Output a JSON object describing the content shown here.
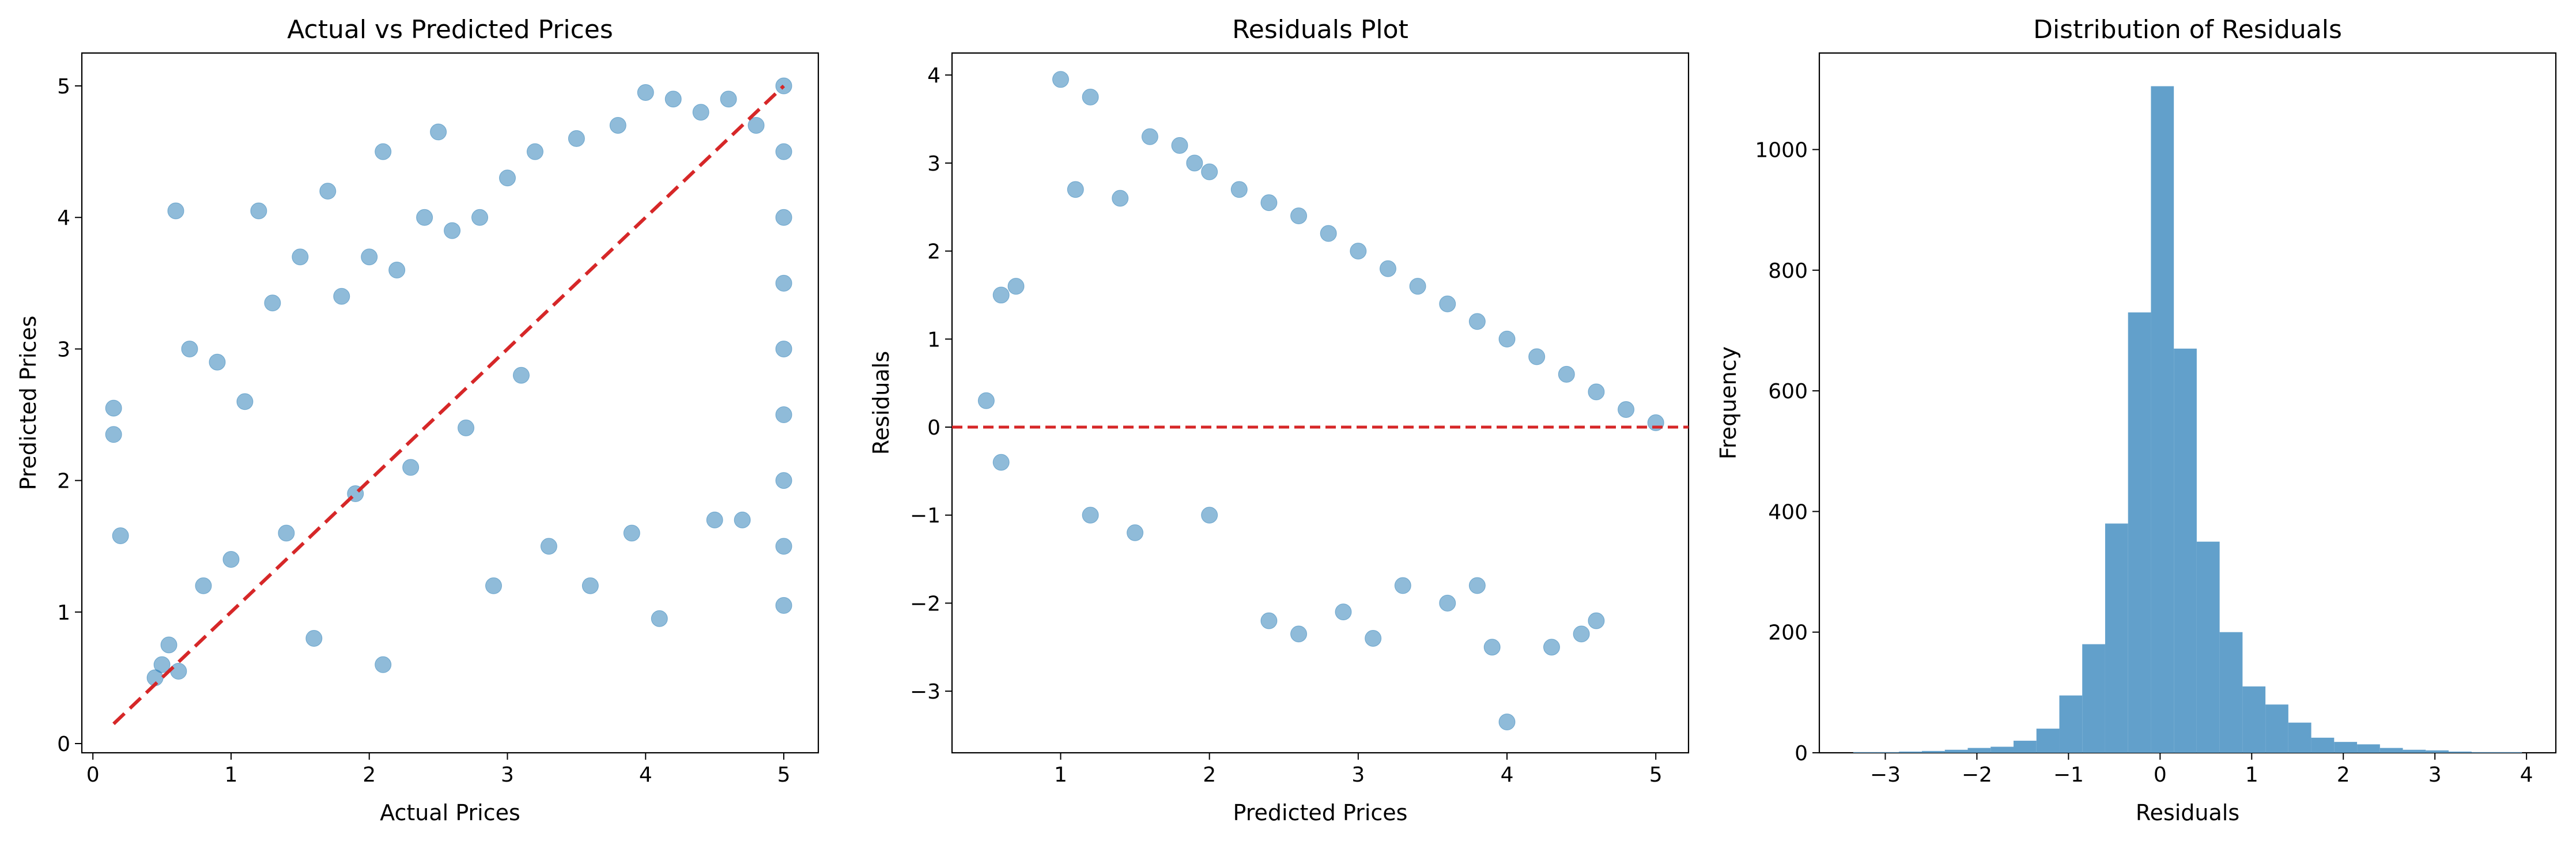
{
  "figure": {
    "charts": [
      {
        "title": "Actual vs Predicted Prices",
        "xlabel": "Actual Prices",
        "ylabel": "Predicted Prices"
      },
      {
        "title": "Residuals Plot",
        "xlabel": "Predicted Prices",
        "ylabel": "Residuals"
      },
      {
        "title": "Distribution of Residuals",
        "xlabel": "Residuals",
        "ylabel": "Frequency"
      }
    ]
  },
  "colors": {
    "points": "#1f77b4",
    "reference_line": "#d62728",
    "hist_bars": "#62a0cb"
  },
  "chart_data": [
    {
      "type": "scatter",
      "title": "Actual vs Predicted Prices",
      "xlabel": "Actual Prices",
      "ylabel": "Predicted Prices",
      "xlim": [
        -0.08,
        5.25
      ],
      "ylim": [
        -0.07,
        5.25
      ],
      "xticks": [
        0,
        1,
        2,
        3,
        4,
        5
      ],
      "yticks": [
        0,
        1,
        2,
        3,
        4,
        5
      ],
      "point_alpha": 0.5,
      "points_note": "approx. 4000 test samples; representative estimated subset",
      "x": [
        0.15,
        0.15,
        0.2,
        0.6,
        1.2,
        2.5,
        2.1,
        1.7,
        0.7,
        0.9,
        1.1,
        1.3,
        1.5,
        1.8,
        2.0,
        2.2,
        2.4,
        2.6,
        2.8,
        3.0,
        3.2,
        3.5,
        3.8,
        4.0,
        4.2,
        4.4,
        4.6,
        4.8,
        5.0,
        5.0,
        5.0,
        5.0,
        5.0,
        5.0,
        5.0,
        5.0,
        5.0,
        0.45,
        0.5,
        0.55,
        0.62,
        0.8,
        1.0,
        1.4,
        1.9,
        2.3,
        2.7,
        3.3,
        3.6,
        4.1,
        4.5,
        3.1,
        2.9,
        1.6,
        2.1,
        3.9,
        4.7
      ],
      "y": [
        2.35,
        2.55,
        1.58,
        4.05,
        4.05,
        4.65,
        4.5,
        4.2,
        3.0,
        2.9,
        2.6,
        3.35,
        3.7,
        3.4,
        3.7,
        3.6,
        4.0,
        3.9,
        4.0,
        4.3,
        4.5,
        4.6,
        4.7,
        4.95,
        4.9,
        4.8,
        4.9,
        4.7,
        5.0,
        4.5,
        4.0,
        3.5,
        3.0,
        2.5,
        2.0,
        1.5,
        1.05,
        0.5,
        0.6,
        0.75,
        0.55,
        1.2,
        1.4,
        1.6,
        1.9,
        2.1,
        2.4,
        1.5,
        1.2,
        0.95,
        1.7,
        2.8,
        1.2,
        0.8,
        0.6,
        1.6,
        1.7
      ]
    },
    {
      "type": "scatter",
      "title": "Residuals Plot",
      "xlabel": "Predicted Prices",
      "ylabel": "Residuals",
      "xlim": [
        0.27,
        5.22
      ],
      "ylim": [
        -3.7,
        4.25
      ],
      "xticks": [
        1,
        2,
        3,
        4,
        5
      ],
      "yticks": [
        -3,
        -2,
        -1,
        0,
        1,
        2,
        3,
        4
      ],
      "reference_y": 0,
      "point_alpha": 0.5,
      "points_note": "approx. 4000 residuals; representative estimated subset",
      "x": [
        1.0,
        1.2,
        0.6,
        0.7,
        1.1,
        1.4,
        1.6,
        1.8,
        1.9,
        2.0,
        2.2,
        2.4,
        2.6,
        2.8,
        3.0,
        3.2,
        3.4,
        3.6,
        3.8,
        4.0,
        4.2,
        4.4,
        4.6,
        4.8,
        5.0,
        2.4,
        2.6,
        2.9,
        3.1,
        3.3,
        3.6,
        3.8,
        3.9,
        4.0,
        4.3,
        4.5,
        4.6,
        1.2,
        1.5,
        2.0,
        0.5,
        0.6
      ],
      "y": [
        3.95,
        3.75,
        1.5,
        1.6,
        2.7,
        2.6,
        3.3,
        3.2,
        3.0,
        2.9,
        2.7,
        2.55,
        2.4,
        2.2,
        2.0,
        1.8,
        1.6,
        1.4,
        1.2,
        1.0,
        0.8,
        0.6,
        0.4,
        0.2,
        0.05,
        -2.2,
        -2.35,
        -2.1,
        -2.4,
        -1.8,
        -2.0,
        -1.8,
        -2.5,
        -3.35,
        -2.5,
        -2.35,
        -2.2,
        -1.0,
        -1.2,
        -1.0,
        0.3,
        -0.4
      ]
    },
    {
      "type": "bar",
      "subtype": "histogram",
      "title": "Distribution of Residuals",
      "xlabel": "Residuals",
      "ylabel": "Frequency",
      "xlim": [
        -3.72,
        4.32
      ],
      "ylim": [
        0,
        1160
      ],
      "xticks": [
        -3,
        -2,
        -1,
        0,
        1,
        2,
        3,
        4
      ],
      "yticks": [
        0,
        200,
        400,
        600,
        800,
        1000
      ],
      "bins_edges": [
        -3.35,
        -3.1,
        -2.85,
        -2.6,
        -2.35,
        -2.1,
        -1.85,
        -1.6,
        -1.35,
        -1.1,
        -0.85,
        -0.6,
        -0.35,
        -0.1,
        0.15,
        0.4,
        0.65,
        0.9,
        1.15,
        1.4,
        1.65,
        1.9,
        2.15,
        2.4,
        2.65,
        2.9,
        3.15,
        3.4,
        3.65,
        3.95
      ],
      "values": [
        1,
        1,
        2,
        3,
        5,
        8,
        10,
        20,
        40,
        95,
        180,
        380,
        730,
        1105,
        670,
        350,
        200,
        110,
        80,
        50,
        25,
        18,
        14,
        8,
        5,
        4,
        2,
        1,
        1
      ]
    }
  ]
}
